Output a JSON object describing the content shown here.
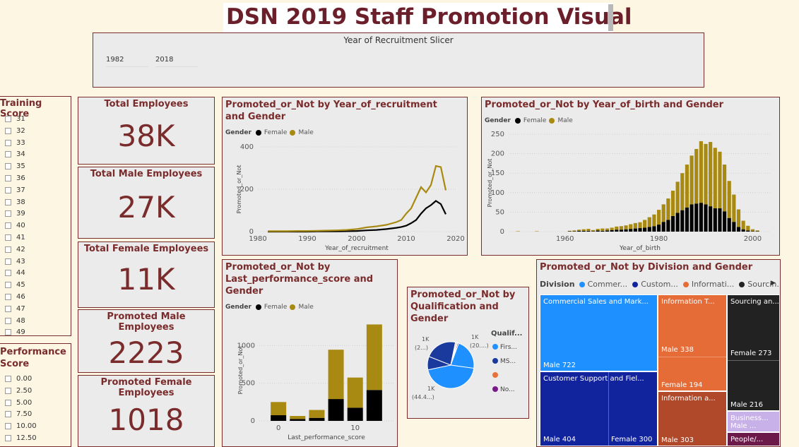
{
  "page_title": "DSN 2019 Staff Promotion Visual",
  "slicer": {
    "title": "Year of Recruitment Slicer",
    "start": "1982",
    "end": "2018"
  },
  "training_score": {
    "title": "Training Score",
    "items": [
      "31",
      "32",
      "33",
      "34",
      "35",
      "36",
      "37",
      "38",
      "39",
      "40",
      "41",
      "42",
      "43",
      "44",
      "45",
      "46",
      "47",
      "48",
      "49"
    ]
  },
  "performance_score": {
    "title": "Performance Score",
    "items": [
      "0.00",
      "2.50",
      "5.00",
      "7.50",
      "10.00",
      "12.50"
    ]
  },
  "kpis": [
    {
      "title": "Total Employees",
      "value": "38K"
    },
    {
      "title": "Total Male Employees",
      "value": "27K"
    },
    {
      "title": "Total Female Employees",
      "value": "11K"
    },
    {
      "title": "Promoted Male Employees",
      "value": "2223"
    },
    {
      "title": "Promoted Female Employees",
      "value": "1018"
    }
  ],
  "colors": {
    "female": "#000000",
    "male": "#a88a12",
    "title": "#7a2b2b"
  },
  "legend": {
    "title": "Gender",
    "female": "Female",
    "male": "Male"
  },
  "chart_data": [
    {
      "type": "line",
      "title": "Promoted_or_Not by Year_of_recruitment and Gender",
      "xlabel": "Year_of_recruitment",
      "ylabel": "Promoted_or_Not",
      "xlim": [
        1980,
        2020
      ],
      "ylim": [
        0,
        400
      ],
      "xticks": [
        "1980",
        "1990",
        "2000",
        "2010",
        "2020"
      ],
      "yticks": [
        "0",
        "200",
        "400"
      ],
      "x": [
        1982,
        1984,
        1986,
        1988,
        1990,
        1992,
        1994,
        1996,
        1998,
        2000,
        2002,
        2004,
        2006,
        2008,
        2009,
        2010,
        2011,
        2012,
        2013,
        2014,
        2015,
        2016,
        2017,
        2018
      ],
      "series": [
        {
          "name": "Female",
          "values": [
            0,
            0,
            0,
            0,
            0,
            1,
            1,
            1,
            2,
            3,
            6,
            8,
            12,
            18,
            22,
            28,
            40,
            55,
            85,
            110,
            125,
            145,
            130,
            82
          ]
        },
        {
          "name": "Male",
          "values": [
            2,
            2,
            2,
            3,
            3,
            4,
            5,
            6,
            8,
            12,
            20,
            25,
            32,
            45,
            55,
            85,
            110,
            160,
            210,
            185,
            220,
            310,
            305,
            195
          ]
        }
      ]
    },
    {
      "type": "bar",
      "stacked": true,
      "title": "Promoted_or_Not by Year_of_birth and Gender",
      "xlabel": "Year_of_birth",
      "ylabel": "Promoted_or_Not",
      "xlim": [
        1948,
        2004
      ],
      "ylim": [
        0,
        250
      ],
      "xticks": [
        "1960",
        "1980",
        "2000"
      ],
      "yticks": [
        "0",
        "50",
        "100",
        "150",
        "200",
        "250"
      ],
      "x": [
        1950,
        1954,
        1961,
        1962,
        1963,
        1964,
        1965,
        1966,
        1967,
        1968,
        1969,
        1970,
        1971,
        1972,
        1973,
        1974,
        1975,
        1976,
        1977,
        1978,
        1979,
        1980,
        1981,
        1982,
        1983,
        1984,
        1985,
        1986,
        1987,
        1988,
        1989,
        1990,
        1991,
        1992,
        1993,
        1994,
        1995,
        1996,
        1997,
        1998,
        1999,
        2000,
        2001
      ],
      "series": [
        {
          "name": "Female",
          "values": [
            0,
            0,
            1,
            1,
            2,
            2,
            2,
            1,
            3,
            2,
            3,
            4,
            5,
            5,
            6,
            7,
            8,
            9,
            10,
            12,
            14,
            18,
            25,
            30,
            40,
            48,
            55,
            62,
            70,
            72,
            74,
            70,
            65,
            60,
            60,
            52,
            35,
            25,
            12,
            6,
            3,
            1,
            1
          ]
        },
        {
          "name": "Male",
          "values": [
            1,
            1,
            1,
            2,
            3,
            4,
            5,
            3,
            4,
            6,
            5,
            6,
            8,
            9,
            10,
            12,
            14,
            15,
            20,
            25,
            30,
            38,
            45,
            55,
            65,
            80,
            95,
            110,
            125,
            140,
            158,
            155,
            165,
            155,
            145,
            120,
            95,
            70,
            45,
            22,
            12,
            5,
            2
          ]
        }
      ]
    },
    {
      "type": "bar",
      "stacked": true,
      "title": "Promoted_or_Not by Last_performance_score and Gender",
      "xlabel": "Last_performance_score",
      "ylabel": "Promoted_or_Not",
      "xlim": [
        -2.5,
        15
      ],
      "ylim": [
        0,
        1350
      ],
      "xticks": [
        "0",
        "10"
      ],
      "yticks": [
        "0",
        "500",
        "1000"
      ],
      "x": [
        0,
        2.5,
        5,
        7.5,
        10,
        12.5
      ],
      "series": [
        {
          "name": "Female",
          "values": [
            75,
            25,
            40,
            290,
            175,
            410
          ]
        },
        {
          "name": "Male",
          "values": [
            175,
            40,
            105,
            655,
            400,
            870
          ]
        }
      ]
    },
    {
      "type": "pie",
      "title": "Promoted_or_Not by Qualification and Gender",
      "legend_title": "Qualif...",
      "labels": [
        "Firs...",
        "MS...",
        "",
        "No..."
      ],
      "colors": [
        "#1e90ff",
        "#1a3a9e",
        "#e8703a",
        "#7a1a8a"
      ],
      "slices": [
        {
          "name": "Female",
          "values": [
            700,
            300,
            10,
            15
          ]
        },
        {
          "name": "Male",
          "values": [
            1440,
            720,
            25,
            25
          ]
        }
      ],
      "annotations": [
        {
          "text": "1K",
          "sub": "(2...)"
        },
        {
          "text": "1K",
          "sub": "(20....)"
        },
        {
          "text": "1K",
          "sub": "(44.4...)"
        }
      ]
    },
    {
      "type": "treemap",
      "title": "Promoted_or_Not by Division and Gender",
      "legend_title": "Division",
      "legend": [
        {
          "name": "Commer...",
          "color": "#1e90ff"
        },
        {
          "name": "Custom...",
          "color": "#12239e"
        },
        {
          "name": "Informati...",
          "color": "#e66c37"
        },
        {
          "name": "Sourcin...",
          "color": "#222222"
        }
      ],
      "groups": [
        {
          "name": "Commercial Sales and Mark...",
          "color": "#1e90ff",
          "cells": [
            {
              "label": "Male 722",
              "value": 722
            }
          ]
        },
        {
          "name": "Customer Support and Fiel...",
          "color": "#12239e",
          "cells": [
            {
              "label": "Male 404",
              "value": 404
            },
            {
              "label": "Female 300",
              "value": 300
            }
          ]
        },
        {
          "name": "Information T...",
          "color": "#e66c37",
          "cells": [
            {
              "label": "Male 338",
              "value": 338
            },
            {
              "label": "Female 194",
              "value": 194
            }
          ]
        },
        {
          "name": "Information a...",
          "color": "#b0492a",
          "cells": [
            {
              "label": "Male 303",
              "value": 303
            }
          ]
        },
        {
          "name": "Sourcing an...",
          "color": "#222222",
          "cells": [
            {
              "label": "Female 273",
              "value": 273
            },
            {
              "label": "Male 216",
              "value": 216
            }
          ]
        },
        {
          "name": "Business...",
          "color": "#c8b0e8",
          "cells": [
            {
              "label": "Male ...",
              "value": 90
            }
          ]
        },
        {
          "name": "People/...",
          "color": "#6b1a4a",
          "cells": [
            {
              "label": "",
              "value": 60
            }
          ]
        }
      ]
    }
  ]
}
